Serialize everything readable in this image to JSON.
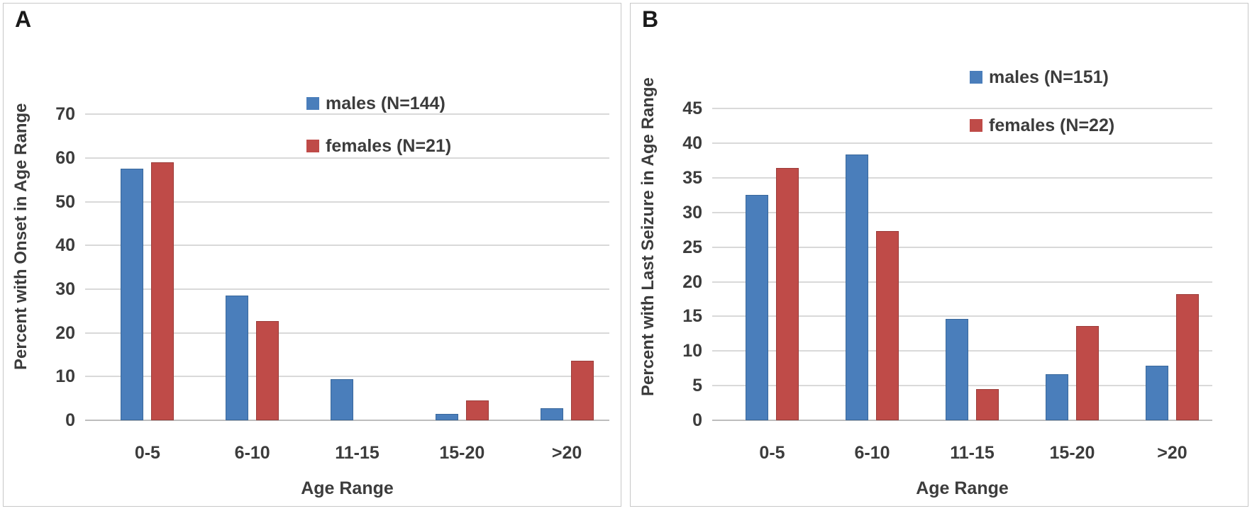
{
  "figure": {
    "background_color": "#FFFFFF",
    "panel_border_color": "#C8C8C8",
    "text_color": "#3C3C3C",
    "gridline_color": "#D9D9D9",
    "baseline_color": "#BDBDBD"
  },
  "chart_data": [
    {
      "panel_label": "A",
      "type": "bar",
      "ylabel": "Percent with Onset in Age Range",
      "xlabel": "Age Range",
      "categories": [
        "0-5",
        "6-10",
        "11-15",
        "15-20",
        ">20"
      ],
      "series": [
        {
          "name": "males (N=144)",
          "color": "#4A7EBB",
          "border_color": "#38679B",
          "values": [
            57.6,
            28.5,
            9.4,
            1.4,
            2.8
          ]
        },
        {
          "name": "females (N=21)",
          "color": "#BF4B48",
          "border_color": "#9C3C39",
          "values": [
            59.1,
            22.7,
            0,
            4.5,
            13.6
          ]
        }
      ],
      "y_ticks": [
        0,
        10,
        20,
        30,
        40,
        50,
        60,
        70
      ],
      "ylim": [
        0,
        84
      ],
      "grid": true,
      "legend_position": "upper right"
    },
    {
      "panel_label": "B",
      "type": "bar",
      "ylabel": "Percent with Last Seizure in Age Range",
      "xlabel": "Age Range",
      "categories": [
        "0-5",
        "6-10",
        "11-15",
        "15-20",
        ">20"
      ],
      "series": [
        {
          "name": "males (N=151)",
          "color": "#4A7EBB",
          "border_color": "#38679B",
          "values": [
            32.5,
            38.4,
            14.6,
            6.6,
            7.9
          ]
        },
        {
          "name": "females (N=22)",
          "color": "#BF4B48",
          "border_color": "#9C3C39",
          "values": [
            36.4,
            27.3,
            4.5,
            13.6,
            18.2
          ]
        }
      ],
      "y_ticks": [
        0,
        5,
        10,
        15,
        20,
        25,
        30,
        35,
        40,
        45
      ],
      "ylim": [
        0,
        53
      ],
      "grid": true,
      "legend_position": "upper right"
    }
  ]
}
